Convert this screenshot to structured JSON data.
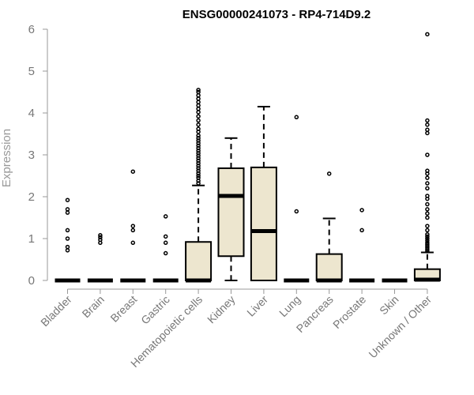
{
  "chart_data": {
    "type": "box",
    "title": "ENSG00000241073 - RP4-714D9.2",
    "ylabel": "Expression",
    "xlabel": "",
    "ylim": [
      0,
      6
    ],
    "yticks": [
      0,
      1,
      2,
      3,
      4,
      5,
      6
    ],
    "box_fill": "#ede6cf",
    "categories": [
      "Bladder",
      "Brain",
      "Breast",
      "Gastric",
      "Hematopoietic cells",
      "Kidney",
      "Liver",
      "Lung",
      "Pancreas",
      "Prostate",
      "Skin",
      "Unknown / Other"
    ],
    "boxes": [
      {
        "q1": 0,
        "median": 0,
        "q3": 0,
        "whisker_low": 0,
        "whisker_high": 0,
        "outliers": [
          0.72,
          0.8,
          1.0,
          1.2,
          1.62,
          1.7,
          1.92
        ]
      },
      {
        "q1": 0,
        "median": 0,
        "q3": 0,
        "whisker_low": 0,
        "whisker_high": 0,
        "outliers": [
          0.9,
          0.97,
          1.03,
          1.08
        ]
      },
      {
        "q1": 0,
        "median": 0,
        "q3": 0,
        "whisker_low": 0,
        "whisker_high": 0,
        "outliers": [
          0.9,
          1.2,
          1.3,
          2.6
        ]
      },
      {
        "q1": 0,
        "median": 0,
        "q3": 0,
        "whisker_low": 0,
        "whisker_high": 0,
        "outliers": [
          0.65,
          0.9,
          1.05,
          1.53
        ]
      },
      {
        "q1": 0,
        "median": 0,
        "q3": 0.92,
        "whisker_low": 0,
        "whisker_high": 2.27,
        "outliers": [
          2.32,
          2.38,
          2.45,
          2.5,
          2.56,
          2.62,
          2.68,
          2.74,
          2.8,
          2.86,
          2.92,
          2.98,
          3.04,
          3.1,
          3.16,
          3.22,
          3.28,
          3.34,
          3.4,
          3.46,
          3.55,
          3.62,
          3.72,
          3.82,
          3.92,
          4.02,
          4.1,
          4.18,
          4.26,
          4.34,
          4.42,
          4.5,
          4.55
        ]
      },
      {
        "q1": 0.58,
        "median": 2.02,
        "q3": 2.68,
        "whisker_low": 0,
        "whisker_high": 3.4,
        "outliers": []
      },
      {
        "q1": 0,
        "median": 1.18,
        "q3": 2.7,
        "whisker_low": 0,
        "whisker_high": 4.15,
        "outliers": []
      },
      {
        "q1": 0,
        "median": 0,
        "q3": 0,
        "whisker_low": 0,
        "whisker_high": 0,
        "outliers": [
          1.65,
          3.9
        ]
      },
      {
        "q1": 0,
        "median": 0,
        "q3": 0.63,
        "whisker_low": 0,
        "whisker_high": 1.48,
        "outliers": [
          2.55
        ]
      },
      {
        "q1": 0,
        "median": 0,
        "q3": 0,
        "whisker_low": 0,
        "whisker_high": 0,
        "outliers": [
          1.2,
          1.68
        ]
      },
      {
        "q1": 0,
        "median": 0,
        "q3": 0,
        "whisker_low": 0,
        "whisker_high": 0,
        "outliers": []
      },
      {
        "q1": 0,
        "median": 0.02,
        "q3": 0.27,
        "whisker_low": 0,
        "whisker_high": 0.67,
        "outliers": [
          0.7,
          0.74,
          0.78,
          0.82,
          0.86,
          0.9,
          0.95,
          1.0,
          1.05,
          1.1,
          1.2,
          1.3,
          1.5,
          1.6,
          1.7,
          1.82,
          1.95,
          2.02,
          2.2,
          2.32,
          2.45,
          2.55,
          2.62,
          3.0,
          3.52,
          3.6,
          3.72,
          3.82,
          5.88
        ]
      }
    ]
  }
}
